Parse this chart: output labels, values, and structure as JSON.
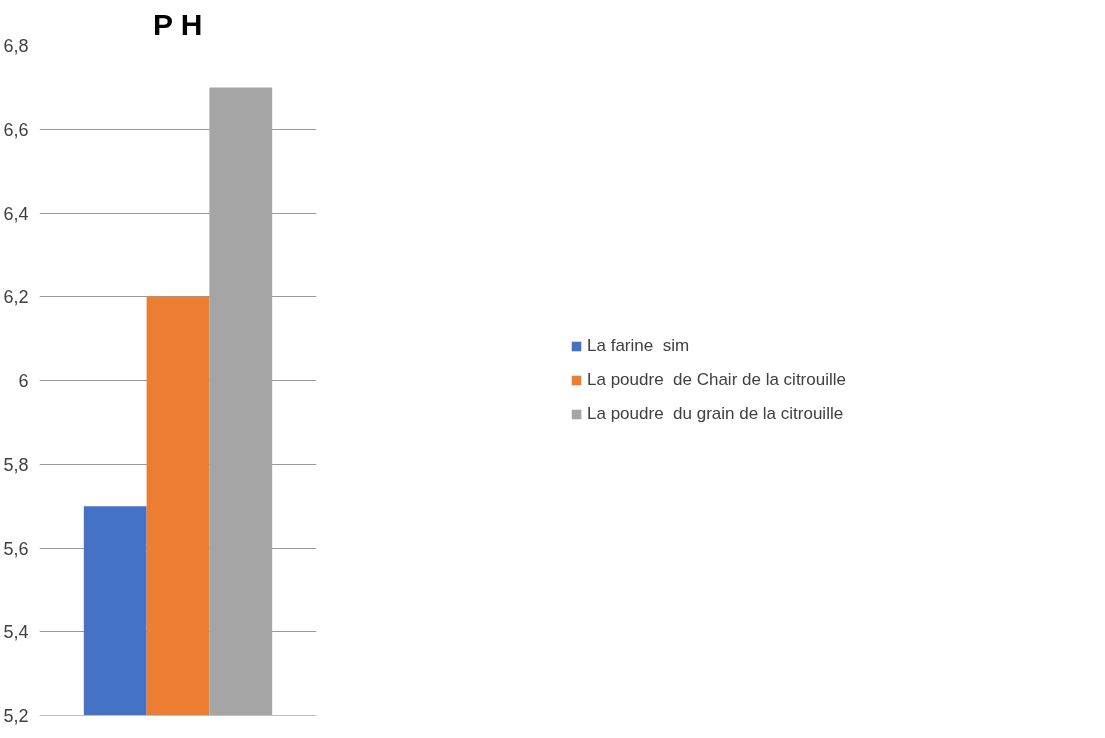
{
  "chart_data": {
    "type": "bar",
    "title": "P H",
    "categories": [
      null
    ],
    "series": [
      {
        "name": "La farine  sim",
        "color": "#4472c4",
        "values": [
          5.7
        ]
      },
      {
        "name": "La poudre  de Chair de la citrouille",
        "color": "#ed7d31",
        "values": [
          6.2
        ]
      },
      {
        "name": "La poudre  du grain de la citrouille",
        "color": "#a5a5a5",
        "values": [
          6.7
        ]
      }
    ],
    "ylim": [
      5.2,
      6.8
    ],
    "yticks": [
      {
        "value": 5.2,
        "label": "5,2"
      },
      {
        "value": 5.4,
        "label": "5,4"
      },
      {
        "value": 5.6,
        "label": "5,6"
      },
      {
        "value": 5.8,
        "label": "5,8"
      },
      6,
      {
        "value": 6.2,
        "label": "6,2"
      },
      {
        "value": 6.4,
        "label": "6,4"
      },
      {
        "value": 6.6,
        "label": "6,6"
      },
      {
        "value": 6.8,
        "label": "6,8"
      }
    ],
    "grid": "y",
    "legend": "right"
  }
}
